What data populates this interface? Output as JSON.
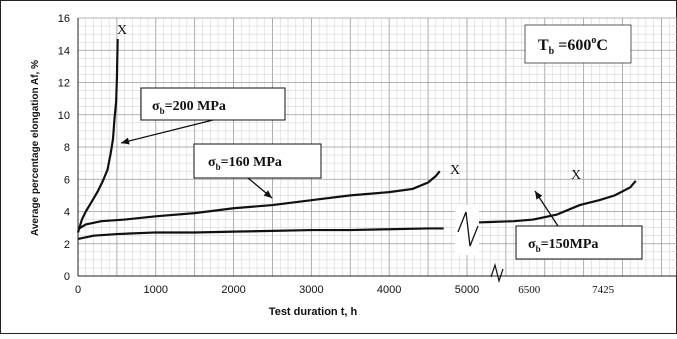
{
  "chart_data": {
    "type": "line",
    "xlabel": "Test duration t, h",
    "ylabel": "Average percentage elongation Af, %",
    "ylim": [
      0,
      16
    ],
    "xlim": [
      0,
      7700
    ],
    "x_ticks": [
      "0",
      "1000",
      "2000",
      "3000",
      "4000",
      "5000",
      "6500",
      "7425"
    ],
    "x_tick_values": [
      0,
      1000,
      2000,
      3000,
      4000,
      5000,
      5800,
      6750
    ],
    "y_ticks": [
      "0",
      "2",
      "4",
      "6",
      "8",
      "10",
      "12",
      "14",
      "16"
    ],
    "grid": true,
    "axis_break": "between 5000 and 6500 (scale change)",
    "temperature_label": {
      "prefix": "T",
      "sub": "b",
      "text": " =600",
      "sup": "o",
      "unit": "C"
    },
    "rupture_marker": "X",
    "series": [
      {
        "label": {
          "prefix": "σ",
          "sub": "b",
          "text": "=200 MPa"
        },
        "x": [
          0,
          50,
          100,
          150,
          200,
          260,
          320,
          380,
          420,
          450,
          470,
          490,
          500,
          505,
          510
        ],
        "y": [
          2.7,
          3.5,
          4.0,
          4.4,
          4.8,
          5.3,
          5.9,
          6.6,
          7.6,
          8.5,
          9.8,
          10.8,
          12.2,
          13.5,
          14.7
        ]
      },
      {
        "label": {
          "prefix": "σ",
          "sub": "b",
          "text": "=160 MPa"
        },
        "x": [
          0,
          100,
          300,
          600,
          1000,
          1500,
          2000,
          2500,
          3000,
          3500,
          4000,
          4300,
          4500,
          4600,
          4650
        ],
        "y": [
          2.9,
          3.2,
          3.4,
          3.5,
          3.7,
          3.9,
          4.2,
          4.4,
          4.7,
          5.0,
          5.2,
          5.4,
          5.8,
          6.2,
          6.5
        ]
      },
      {
        "label": {
          "prefix": "σ",
          "sub": "b",
          "text": "=150MPa"
        },
        "x": [
          0,
          200,
          500,
          1000,
          1500,
          2000,
          2500,
          3000,
          3500,
          4000,
          4500,
          4700,
          5000,
          5300,
          5600,
          5850,
          6150,
          6450,
          6700,
          6900,
          7100,
          7170
        ],
        "y": [
          2.3,
          2.5,
          2.6,
          2.7,
          2.7,
          2.75,
          2.8,
          2.85,
          2.85,
          2.9,
          2.95,
          2.95,
          3.3,
          3.35,
          3.4,
          3.5,
          3.8,
          4.4,
          4.7,
          5.0,
          5.5,
          5.9
        ]
      }
    ]
  }
}
